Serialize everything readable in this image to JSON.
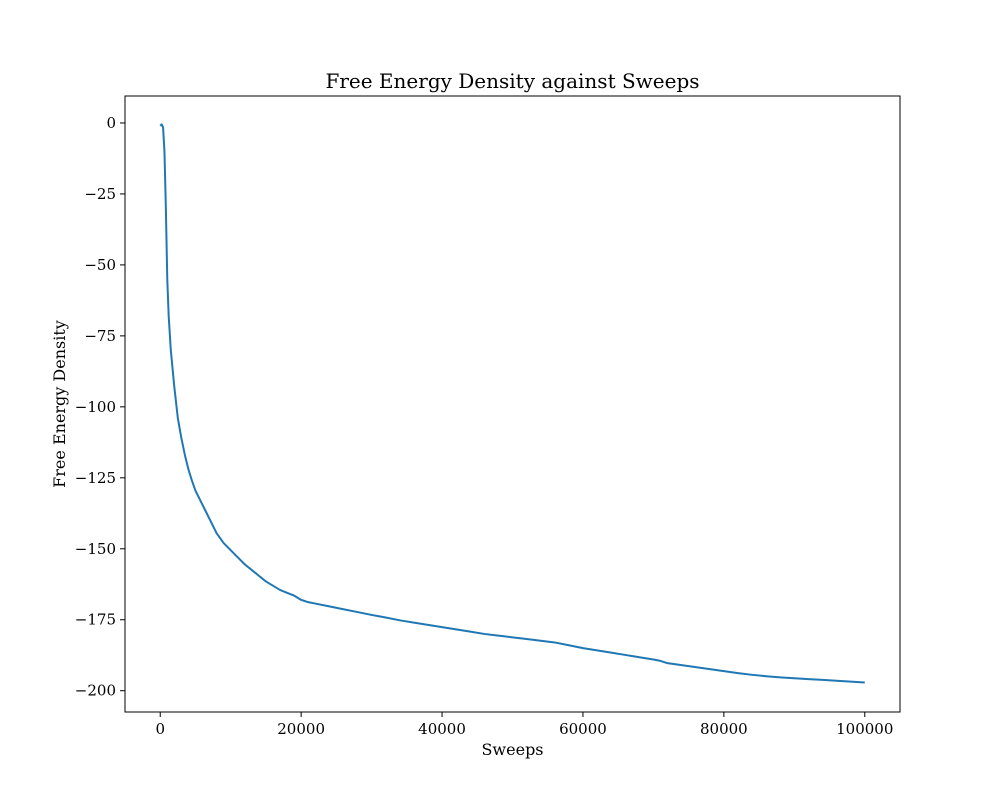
{
  "chart_data": {
    "type": "line",
    "title": "Free Energy Density against Sweeps",
    "xlabel": "Sweeps",
    "ylabel": "Free Energy Density",
    "xlim": [
      -5000,
      105000
    ],
    "ylim": [
      -207.5,
      9.5
    ],
    "xticks": [
      0,
      20000,
      40000,
      60000,
      80000,
      100000
    ],
    "xtick_labels": [
      "0",
      "20000",
      "40000",
      "60000",
      "80000",
      "100000"
    ],
    "yticks": [
      0,
      -25,
      -50,
      -75,
      -100,
      -125,
      -150,
      -175,
      -200
    ],
    "ytick_labels": [
      "0",
      "−25",
      "−50",
      "−75",
      "−100",
      "−125",
      "−150",
      "−175",
      "−200"
    ],
    "grid": false,
    "line_color": "#1f77b4",
    "series": [
      {
        "x": [
          0,
          200,
          400,
          600,
          700,
          800,
          1000,
          1200,
          1500,
          2000,
          2500,
          3000,
          3500,
          4000,
          4500,
          5000,
          5500,
          6000,
          6500,
          7000,
          8000,
          9000,
          10000,
          11000,
          12000,
          13000,
          14000,
          15000,
          16000,
          17000,
          18000,
          19000,
          20000,
          21000,
          22000,
          24000,
          26000,
          28000,
          30000,
          32000,
          34000,
          36000,
          38000,
          40000,
          42000,
          44000,
          46000,
          48000,
          50000,
          52000,
          54000,
          56000,
          58000,
          60000,
          62000,
          64000,
          66000,
          68000,
          70000,
          71000,
          72000,
          74000,
          76000,
          78000,
          80000,
          82000,
          84000,
          86000,
          88000,
          90000,
          92000,
          94000,
          96000,
          98000,
          100000
        ],
        "y": [
          -1,
          -0.5,
          -1.5,
          -10,
          -20,
          -30,
          -55,
          -68,
          -80,
          -93,
          -104,
          -111,
          -117,
          -122,
          -126,
          -129.5,
          -132,
          -134.5,
          -137,
          -139.5,
          -144.5,
          -148,
          -150.5,
          -153,
          -155.5,
          -157.5,
          -159.5,
          -161.5,
          -163,
          -164.5,
          -165.5,
          -166.5,
          -168,
          -168.8,
          -169.3,
          -170.3,
          -171.3,
          -172.3,
          -173.3,
          -174.2,
          -175.2,
          -176,
          -176.8,
          -177.6,
          -178.4,
          -179.2,
          -180,
          -180.6,
          -181.2,
          -181.8,
          -182.4,
          -183.0,
          -184.0,
          -185.0,
          -185.8,
          -186.6,
          -187.4,
          -188.2,
          -189.0,
          -189.5,
          -190.3,
          -191.0,
          -191.7,
          -192.4,
          -193.1,
          -193.8,
          -194.4,
          -194.9,
          -195.3,
          -195.6,
          -195.9,
          -196.2,
          -196.5,
          -196.8,
          -197.1
        ]
      }
    ]
  }
}
